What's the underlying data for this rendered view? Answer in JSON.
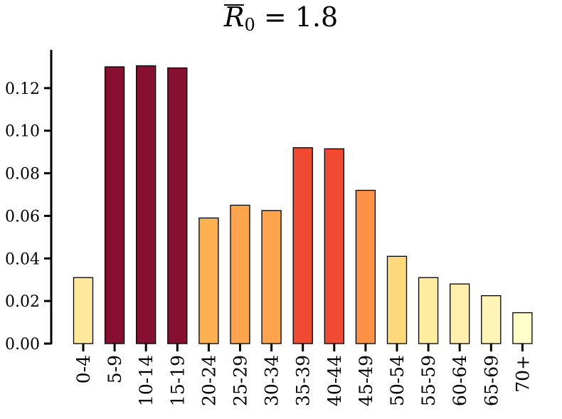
{
  "title": {
    "symbol": "R",
    "subscript": "0",
    "rest": " = 1.8"
  },
  "chart_data": {
    "type": "bar",
    "title": "R̄₀ = 1.8",
    "xlabel": "",
    "ylabel": "",
    "ylim": [
      0,
      0.138
    ],
    "yticks": [
      "0.00",
      "0.02",
      "0.04",
      "0.06",
      "0.08",
      "0.10",
      "0.12"
    ],
    "categories": [
      "0-4",
      "5-9",
      "10-14",
      "15-19",
      "20-24",
      "25-29",
      "30-34",
      "35-39",
      "40-44",
      "45-49",
      "50-54",
      "55-59",
      "60-64",
      "65-69",
      "70+"
    ],
    "values": [
      0.031,
      0.13,
      0.1305,
      0.1295,
      0.059,
      0.065,
      0.0625,
      0.092,
      0.0915,
      0.072,
      0.041,
      0.031,
      0.028,
      0.0225,
      0.0145
    ],
    "colors": [
      "#fee89b",
      "#870f31",
      "#870f31",
      "#870f31",
      "#fdb04f",
      "#fda44d",
      "#fda44d",
      "#f14a33",
      "#f14a33",
      "#fd9246",
      "#fed97b",
      "#feec9f",
      "#ffefac",
      "#fff4b7",
      "#ffffcc"
    ],
    "grid": false,
    "legend": "none"
  }
}
